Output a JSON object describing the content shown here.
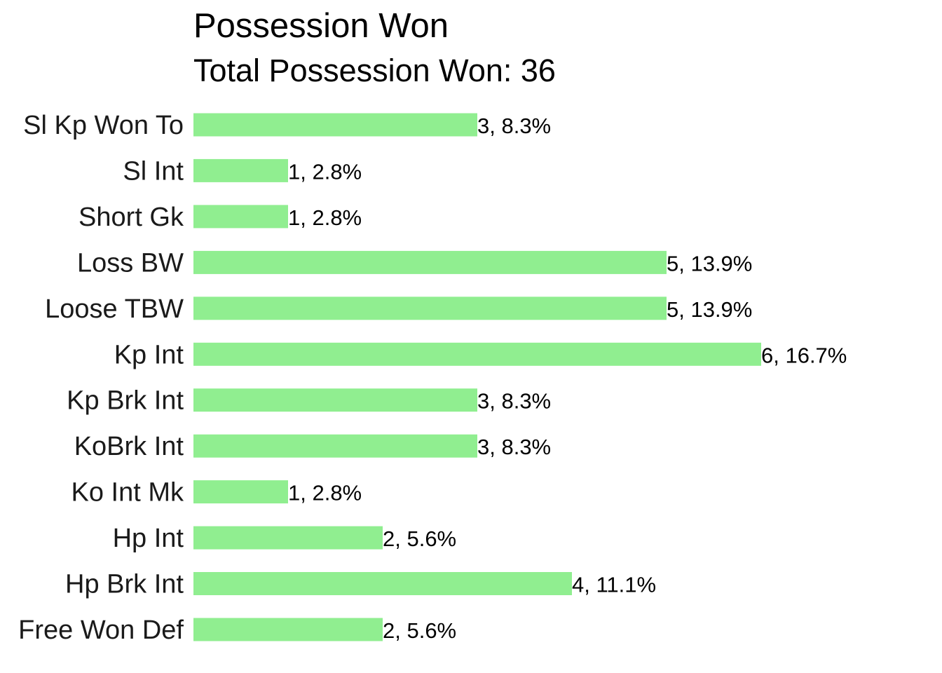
{
  "chart_data": {
    "type": "bar",
    "orientation": "horizontal",
    "title": "Possession Won",
    "subtitle": "Total Possession Won: 36",
    "total": 36,
    "categories": [
      "Sl Kp Won To",
      "Sl Int",
      "Short Gk",
      "Loss BW",
      "Loose TBW",
      "Kp Int",
      "Kp Brk Int",
      "KoBrk Int",
      "Ko Int Mk",
      "Hp Int",
      "Hp Brk Int",
      "Free Won Def"
    ],
    "values": [
      3,
      1,
      1,
      5,
      5,
      6,
      3,
      3,
      1,
      2,
      4,
      2
    ],
    "data_labels": [
      "3, 8.3%",
      "1, 2.8%",
      "1, 2.8%",
      "5, 13.9%",
      "5, 13.9%",
      "6, 16.7%",
      "3, 8.3%",
      "3, 8.3%",
      "1, 2.8%",
      "2, 5.6%",
      "4, 11.1%",
      "2, 5.6%"
    ],
    "xlim": [
      0,
      6
    ],
    "xlabel": "",
    "ylabel": "",
    "grid": false,
    "legend": "none",
    "bar_color": "#90EE90"
  }
}
